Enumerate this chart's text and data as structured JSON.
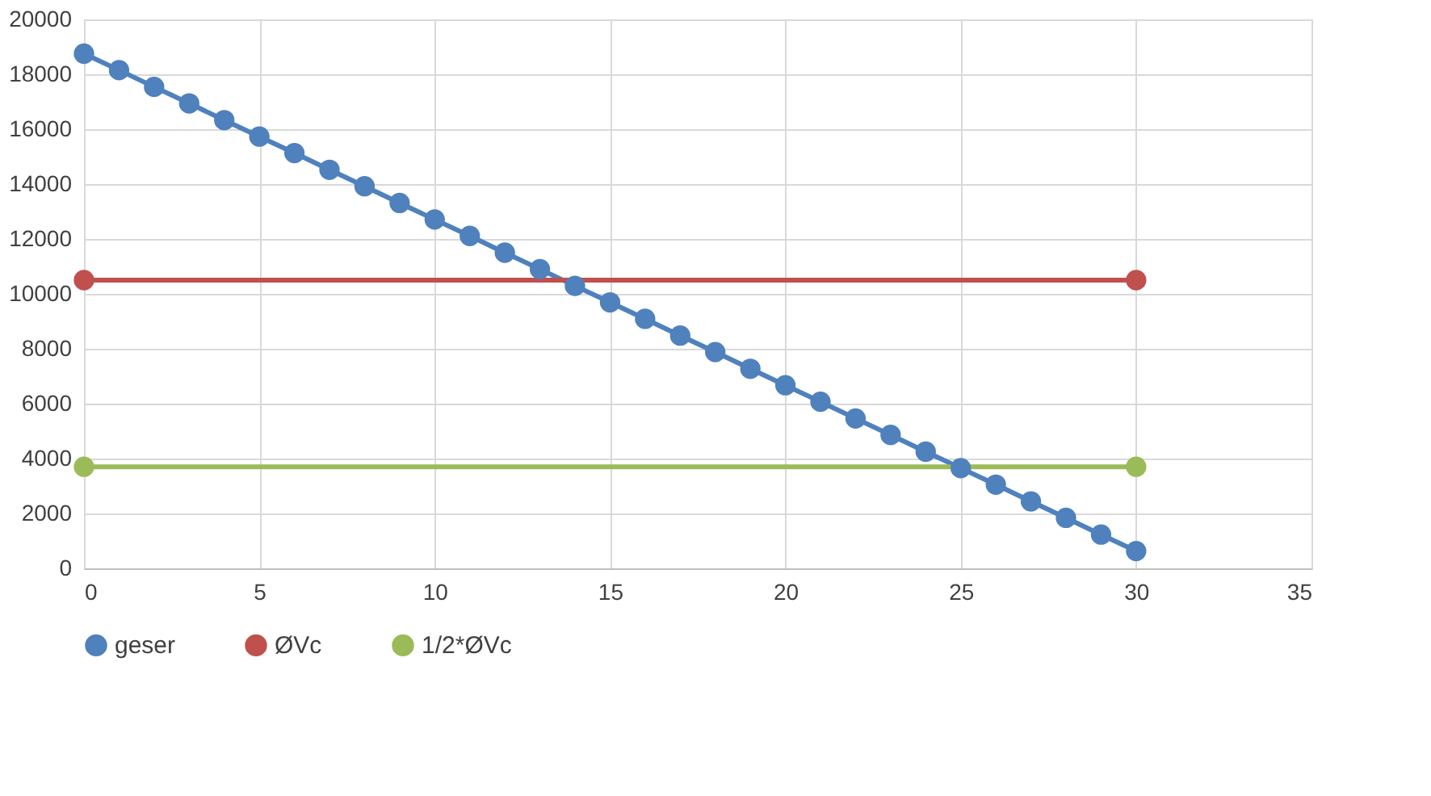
{
  "chart_data": {
    "type": "line",
    "xlim": [
      0,
      35
    ],
    "xticks": [
      0,
      5,
      10,
      15,
      20,
      25,
      30,
      35
    ],
    "ylim": [
      0,
      20000
    ],
    "yticks": [
      0,
      2000,
      4000,
      6000,
      8000,
      10000,
      12000,
      14000,
      16000,
      18000,
      20000
    ],
    "grid": true,
    "legend": "bottom",
    "marker": "circle",
    "line_style": "solid",
    "series": [
      {
        "name": "geser",
        "color": "#4f81bd",
        "x": [
          0,
          1,
          2,
          3,
          4,
          5,
          6,
          7,
          8,
          9,
          10,
          11,
          12,
          13,
          14,
          15,
          16,
          17,
          18,
          19,
          20,
          21,
          22,
          23,
          24,
          25,
          26,
          27,
          28,
          29,
          30
        ],
        "values": [
          18750,
          18150,
          17540,
          16940,
          16330,
          15730,
          15130,
          14520,
          13920,
          13310,
          12710,
          12110,
          11500,
          10900,
          10290,
          9690,
          9090,
          8480,
          7880,
          7270,
          6670,
          6070,
          5460,
          4860,
          4250,
          3650,
          3050,
          2440,
          1840,
          1230,
          630
        ]
      },
      {
        "name": "ØVc",
        "color": "#c0504d",
        "x": [
          0,
          30
        ],
        "values": [
          10500,
          10500
        ]
      },
      {
        "name": "1/2*ØVc",
        "color": "#9bbb59",
        "x": [
          0,
          30
        ],
        "values": [
          3700,
          3700
        ]
      }
    ]
  }
}
